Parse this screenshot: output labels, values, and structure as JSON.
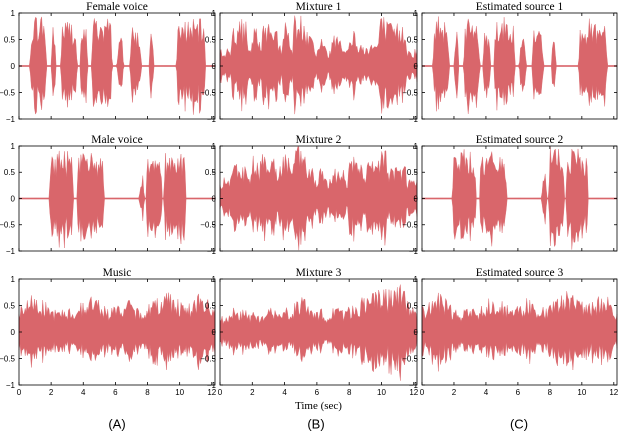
{
  "chart_data": [
    {
      "type": "area",
      "title": "Female voice",
      "signal": "female",
      "show_xticks": false,
      "xlim": [
        0,
        12.2
      ],
      "ylim": [
        -1,
        1
      ],
      "xticks": [
        "0",
        "2",
        "4",
        "6",
        "8",
        "10",
        "12"
      ],
      "yticks": [
        "-1",
        "-0.5",
        "0",
        "0.5",
        "1"
      ],
      "color": "#d9666b"
    },
    {
      "type": "area",
      "title": "Mixture 1",
      "signal": "mix1",
      "show_xticks": false,
      "xlim": [
        0,
        12.2
      ],
      "ylim": [
        -1,
        1
      ],
      "xticks": [
        "0",
        "2",
        "4",
        "6",
        "8",
        "10",
        "12"
      ],
      "yticks": [
        "-1",
        "-0.5",
        "0",
        "0.5",
        "1"
      ],
      "color": "#d9666b"
    },
    {
      "type": "area",
      "title": "Estimated source 1",
      "signal": "female",
      "show_xticks": false,
      "xlim": [
        0,
        12.2
      ],
      "ylim": [
        -1,
        1
      ],
      "xticks": [
        "0",
        "2",
        "4",
        "6",
        "8",
        "10",
        "12"
      ],
      "yticks": [
        "-1",
        "-0.5",
        "0",
        "0.5",
        "1"
      ],
      "color": "#d9666b"
    },
    {
      "type": "area",
      "title": "Male voice",
      "signal": "male",
      "show_xticks": false,
      "xlim": [
        0,
        12.2
      ],
      "ylim": [
        -1,
        1
      ],
      "xticks": [
        "0",
        "2",
        "4",
        "6",
        "8",
        "10",
        "12"
      ],
      "yticks": [
        "-1",
        "-0.5",
        "0",
        "0.5",
        "1"
      ],
      "color": "#d9666b"
    },
    {
      "type": "area",
      "title": "Mixture 2",
      "signal": "mix2",
      "show_xticks": false,
      "xlim": [
        0,
        12.2
      ],
      "ylim": [
        -1,
        1
      ],
      "xticks": [
        "0",
        "2",
        "4",
        "6",
        "8",
        "10",
        "12"
      ],
      "yticks": [
        "-1",
        "-0.5",
        "0",
        "0.5",
        "1"
      ],
      "color": "#d9666b"
    },
    {
      "type": "area",
      "title": "Estimated source 2",
      "signal": "male",
      "show_xticks": false,
      "xlim": [
        0,
        12.2
      ],
      "ylim": [
        -1,
        1
      ],
      "xticks": [
        "0",
        "2",
        "4",
        "6",
        "8",
        "10",
        "12"
      ],
      "yticks": [
        "-1",
        "-0.5",
        "0",
        "0.5",
        "1"
      ],
      "color": "#d9666b"
    },
    {
      "type": "area",
      "title": "Music",
      "signal": "music",
      "show_xticks": true,
      "xlim": [
        0,
        12.2
      ],
      "ylim": [
        -1,
        1
      ],
      "xticks": [
        "0",
        "2",
        "4",
        "6",
        "8",
        "10",
        "12"
      ],
      "yticks": [
        "-1",
        "-0.5",
        "0",
        "0.5",
        "1"
      ],
      "color": "#d9666b"
    },
    {
      "type": "area",
      "title": "Mixture 3",
      "signal": "mix3",
      "show_xticks": true,
      "xlim": [
        0,
        12.2
      ],
      "ylim": [
        -1,
        1
      ],
      "xticks": [
        "0",
        "2",
        "4",
        "6",
        "8",
        "10",
        "12"
      ],
      "yticks": [
        "-1",
        "-0.5",
        "0",
        "0.5",
        "1"
      ],
      "color": "#d9666b",
      "xlabel": "Time (sec)"
    },
    {
      "type": "area",
      "title": "Estimated source 3",
      "signal": "music",
      "show_xticks": true,
      "xlim": [
        0,
        12.2
      ],
      "ylim": [
        -1,
        1
      ],
      "xticks": [
        "0",
        "2",
        "4",
        "6",
        "8",
        "10",
        "12"
      ],
      "yticks": [
        "-1",
        "-0.5",
        "0",
        "0.5",
        "1"
      ],
      "color": "#d9666b"
    }
  ],
  "column_labels": {
    "a": "(A)",
    "b": "(B)",
    "c": "(C)"
  }
}
